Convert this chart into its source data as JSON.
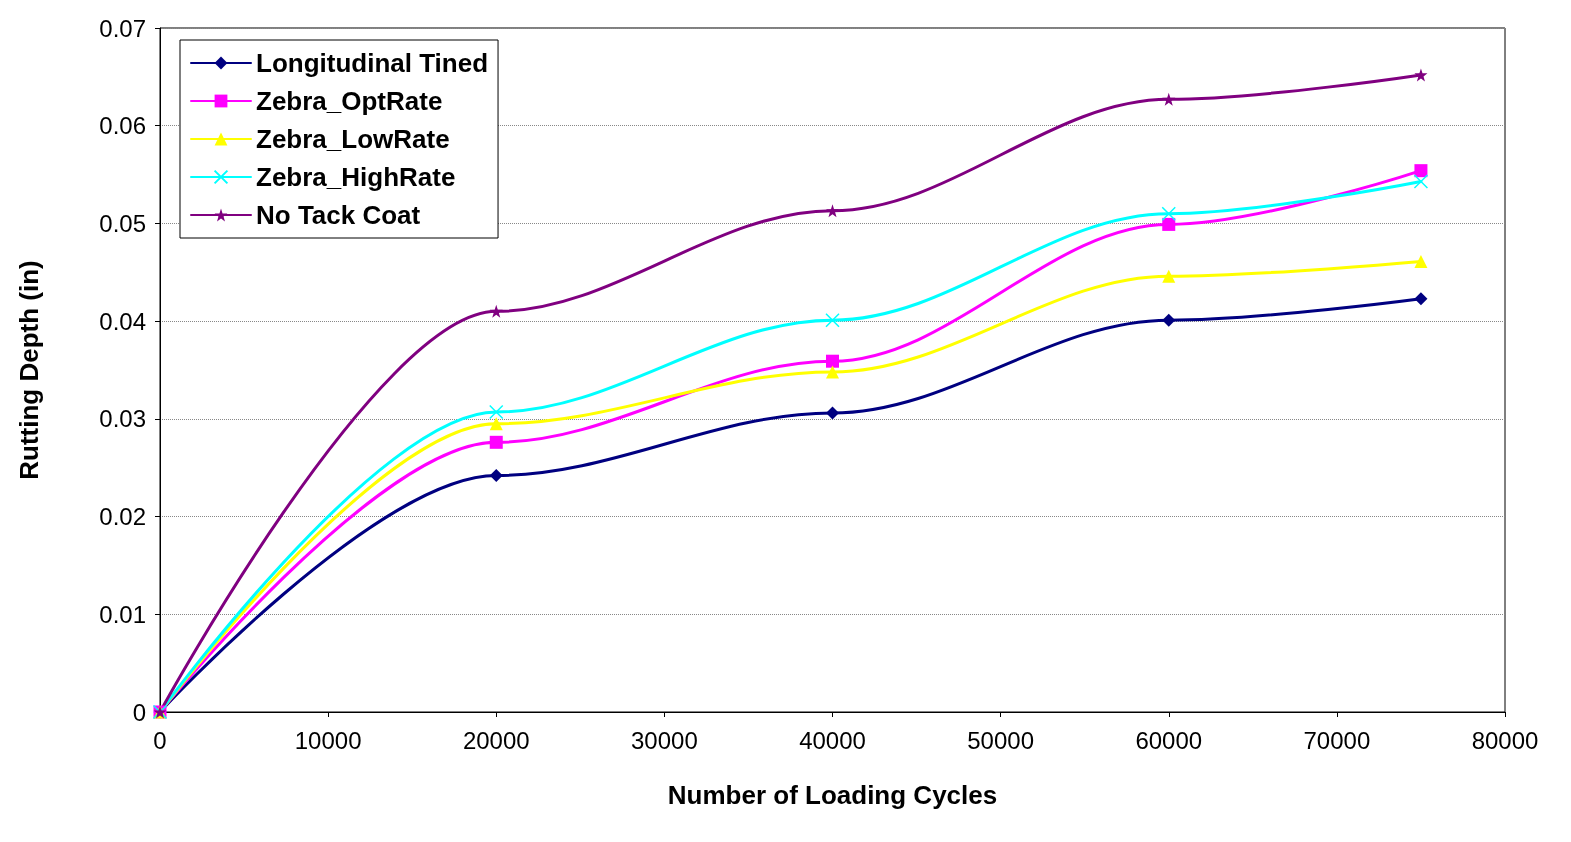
{
  "chart_data": {
    "type": "line",
    "xlabel": "Number of Loading Cycles",
    "ylabel": "Rutting Depth (in)",
    "x": [
      0,
      20000,
      40000,
      60000,
      75000
    ],
    "series": [
      {
        "name": "Longitudinal Tined",
        "color": "#000080",
        "marker": "diamond",
        "values": [
          0,
          0.0242,
          0.0306,
          0.0401,
          0.0423
        ]
      },
      {
        "name": "Zebra_OptRate",
        "color": "#ff00ff",
        "marker": "square",
        "values": [
          0,
          0.0276,
          0.0359,
          0.0499,
          0.0554
        ]
      },
      {
        "name": "Zebra_LowRate",
        "color": "#ffff00",
        "marker": "triangle",
        "values": [
          0,
          0.0295,
          0.0348,
          0.0446,
          0.0461
        ]
      },
      {
        "name": "Zebra_HighRate",
        "color": "#00ffff",
        "marker": "cross",
        "values": [
          0,
          0.0307,
          0.0401,
          0.051,
          0.0543
        ]
      },
      {
        "name": "No Tack Coat",
        "color": "#800080",
        "marker": "star",
        "values": [
          0,
          0.041,
          0.0513,
          0.0627,
          0.0652
        ]
      }
    ],
    "xlim": [
      0,
      80000
    ],
    "xticks": [
      0,
      10000,
      20000,
      30000,
      40000,
      50000,
      60000,
      70000,
      80000
    ],
    "ylim": [
      0,
      0.07
    ],
    "yticks": [
      0,
      0.01,
      0.02,
      0.03,
      0.04,
      0.05,
      0.06,
      0.07
    ],
    "grid": "y",
    "legend": "top left",
    "line_style": "solid"
  }
}
